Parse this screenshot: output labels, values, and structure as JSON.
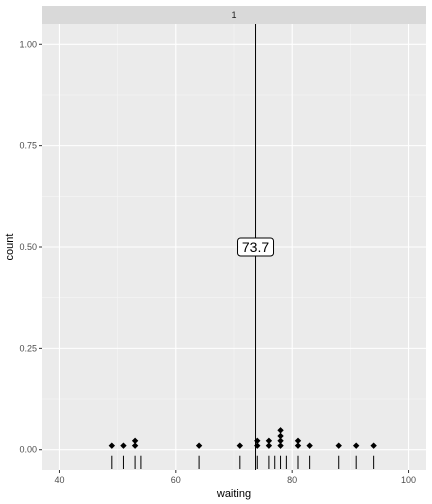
{
  "chart_data": {
    "type": "scatter",
    "facet_label": "1",
    "xlabel": "waiting",
    "ylabel": "count",
    "xlim": [
      37,
      103
    ],
    "ylim": [
      -0.05,
      1.05
    ],
    "x_ticks": [
      40,
      60,
      80,
      100
    ],
    "y_ticks": [
      0.0,
      0.25,
      0.5,
      0.75,
      1.0
    ],
    "y_tick_labels": [
      "0.00",
      "0.25",
      "0.50",
      "0.75",
      "1.00"
    ],
    "grid": true,
    "vline_x": 73.7,
    "annotation": {
      "text": "73.7",
      "x": 73.7,
      "y": 0.5
    },
    "dots": [
      {
        "x": 49,
        "y": 0.01
      },
      {
        "x": 51,
        "y": 0.01
      },
      {
        "x": 53,
        "y": 0.01
      },
      {
        "x": 53,
        "y": 0.022
      },
      {
        "x": 64,
        "y": 0.01
      },
      {
        "x": 71,
        "y": 0.01
      },
      {
        "x": 74,
        "y": 0.01
      },
      {
        "x": 74,
        "y": 0.022
      },
      {
        "x": 76,
        "y": 0.01
      },
      {
        "x": 76,
        "y": 0.022
      },
      {
        "x": 78,
        "y": 0.01
      },
      {
        "x": 78,
        "y": 0.022
      },
      {
        "x": 78,
        "y": 0.034
      },
      {
        "x": 78,
        "y": 0.048
      },
      {
        "x": 81,
        "y": 0.01
      },
      {
        "x": 81,
        "y": 0.022
      },
      {
        "x": 83,
        "y": 0.01
      },
      {
        "x": 88,
        "y": 0.01
      },
      {
        "x": 91,
        "y": 0.01
      },
      {
        "x": 94,
        "y": 0.01
      }
    ],
    "rug": [
      49,
      51,
      53,
      54,
      64,
      71,
      74,
      76,
      77,
      78,
      79,
      81,
      83,
      88,
      91,
      94
    ]
  }
}
